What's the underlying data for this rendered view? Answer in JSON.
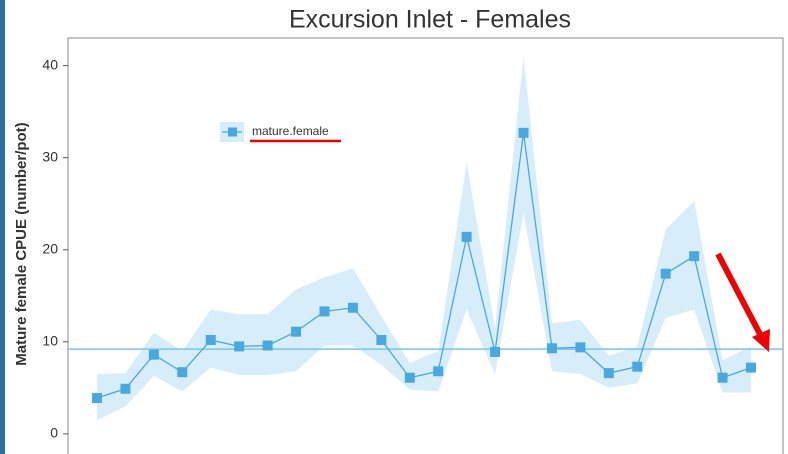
{
  "chart_data": {
    "type": "line",
    "title": "Excursion Inlet - Females",
    "y_label": "Mature female CPUE (number/pot)",
    "categories": [
      null,
      null,
      null,
      null,
      null,
      null,
      null,
      null,
      null,
      null,
      null,
      null,
      null,
      null,
      null,
      null,
      null,
      null,
      null,
      null,
      null,
      null,
      null,
      null
    ],
    "series": [
      {
        "name": "mature.female",
        "color": "#4aa8e0",
        "band_color": "#d8edfa",
        "values": [
          3.9,
          4.9,
          8.6,
          6.7,
          10.2,
          9.5,
          9.6,
          11.1,
          13.3,
          13.7,
          10.2,
          6.1,
          6.8,
          21.4,
          8.9,
          32.7,
          9.3,
          9.4,
          6.6,
          7.3,
          17.4,
          19.3,
          6.1,
          7.2
        ],
        "lower": [
          1.5,
          3.0,
          6.3,
          4.6,
          7.2,
          6.4,
          6.4,
          6.8,
          9.6,
          9.6,
          7.5,
          4.8,
          4.6,
          13.5,
          6.5,
          24.0,
          6.8,
          6.5,
          5.0,
          5.5,
          12.6,
          13.5,
          4.5,
          4.5
        ],
        "upper": [
          6.5,
          6.6,
          11.0,
          9.0,
          13.5,
          13.0,
          13.0,
          15.7,
          17.0,
          18.0,
          12.8,
          7.7,
          9.0,
          29.5,
          11.5,
          41.0,
          12.0,
          12.4,
          8.5,
          9.5,
          22.2,
          25.3,
          8.0,
          9.5
        ]
      }
    ],
    "hline": 9.2,
    "hline_color": "#7cc3e6",
    "ylim": [
      -1.75,
      43
    ],
    "yticks": [
      0,
      10,
      20,
      30,
      40
    ],
    "grid": false
  }
}
